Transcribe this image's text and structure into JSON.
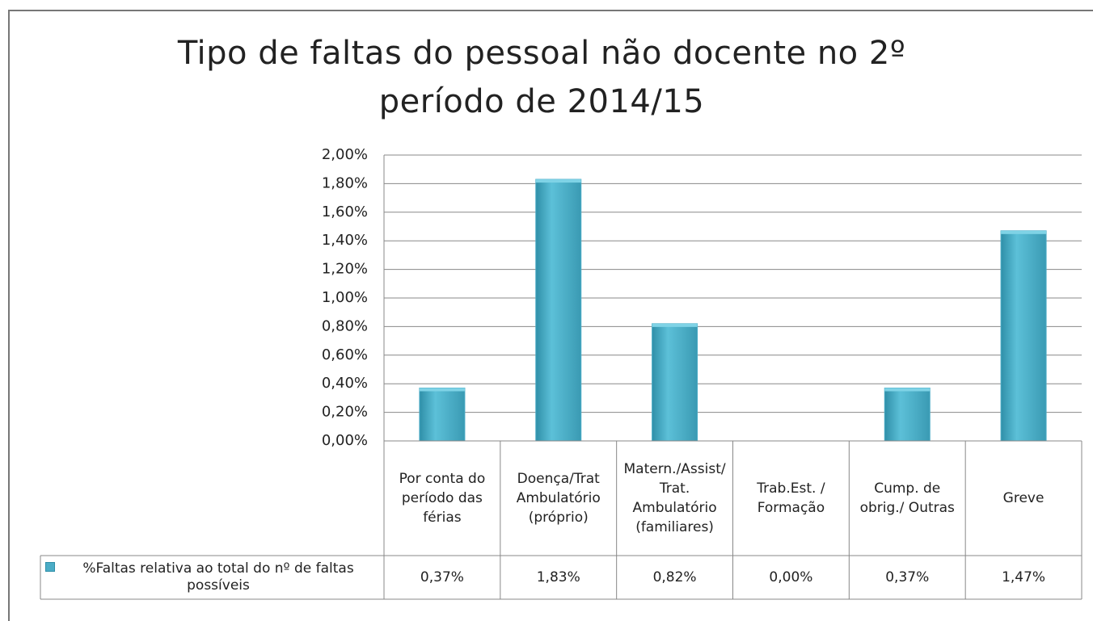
{
  "chart_data": {
    "type": "bar",
    "title": "Tipo de faltas do pessoal não docente no 2º período de 2014/15",
    "categories": [
      "Por conta do período das férias",
      "Doença/Trat Ambulatório (próprio)",
      "Matern./Assist/ Trat. Ambulatório (familiares)",
      "Trab.Est. / Formação",
      "Cump. de obrig./ Outras",
      "Greve"
    ],
    "series": [
      {
        "name": "%Faltas relativa ao total do nº de faltas possíveis",
        "color": "#4bacc6",
        "values": [
          0.37,
          1.83,
          0.82,
          0.0,
          0.37,
          1.47
        ],
        "value_labels": [
          "0,37%",
          "1,83%",
          "0,82%",
          "0,00%",
          "0,37%",
          "1,47%"
        ]
      }
    ],
    "ylim": [
      0,
      2
    ],
    "yticks": [
      {
        "value": 0,
        "label": "0,00%"
      },
      {
        "value": 0.2,
        "label": "0,20%"
      },
      {
        "value": 0.4,
        "label": "0,40%"
      },
      {
        "value": 0.6,
        "label": "0,60%"
      },
      {
        "value": 0.8,
        "label": "0,80%"
      },
      {
        "value": 1.0,
        "label": "1,00%"
      },
      {
        "value": 1.2,
        "label": "1,20%"
      },
      {
        "value": 1.4,
        "label": "1,40%"
      },
      {
        "value": 1.6,
        "label": "1,60%"
      },
      {
        "value": 1.8,
        "label": "1,80%"
      },
      {
        "value": 2.0,
        "label": "2,00%"
      }
    ],
    "grid": true,
    "data_table": true
  }
}
